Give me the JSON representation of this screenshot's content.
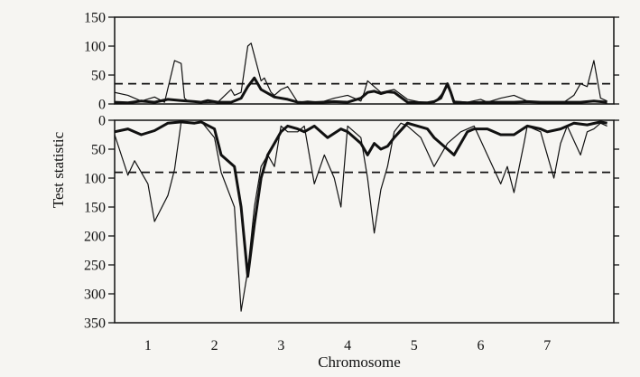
{
  "chart_data": {
    "type": "line",
    "ylabel": "Test statistic",
    "xlabel": "Chromosome",
    "x_tick_labels": [
      "1",
      "2",
      "3",
      "4",
      "5",
      "6",
      "7"
    ],
    "panels": [
      {
        "id": "upper",
        "orientation": "normal",
        "ylim": [
          0,
          150
        ],
        "y_ticks": [
          0,
          50,
          100,
          150
        ],
        "y_tick_labels": [
          "0",
          "50",
          "100",
          "150"
        ],
        "threshold": 35,
        "series": [
          {
            "style": "thick",
            "x": [
              0.0,
              0.2,
              0.4,
              0.6,
              0.8,
              1.0,
              1.2,
              1.3,
              1.4,
              1.55,
              1.75,
              1.9,
              2.0,
              2.1,
              2.2,
              2.4,
              2.6,
              2.75,
              2.9,
              3.1,
              3.3,
              3.5,
              3.7,
              3.75,
              3.8,
              3.9,
              4.0,
              4.1,
              4.2,
              4.4,
              4.7,
              4.8,
              4.9,
              5.0,
              5.05,
              5.1,
              5.3,
              5.6,
              5.8,
              6.0,
              6.2,
              6.4,
              6.6,
              6.8,
              7.0,
              7.2,
              7.4
            ],
            "y": [
              3,
              2,
              5,
              3,
              8,
              6,
              4,
              3,
              6,
              3,
              3,
              10,
              30,
              45,
              25,
              12,
              8,
              3,
              2,
              3,
              4,
              3,
              10,
              15,
              20,
              22,
              18,
              21,
              20,
              3,
              2,
              4,
              10,
              35,
              20,
              3,
              2,
              3,
              3,
              3,
              4,
              3,
              3,
              3,
              3,
              5,
              3
            ]
          },
          {
            "style": "thin",
            "x": [
              0.0,
              0.2,
              0.4,
              0.6,
              0.75,
              0.9,
              1.0,
              1.05,
              1.1,
              1.3,
              1.55,
              1.75,
              1.8,
              1.9,
              2.0,
              2.05,
              2.2,
              2.25,
              2.35,
              2.4,
              2.5,
              2.6,
              2.75,
              2.9,
              3.1,
              3.3,
              3.5,
              3.7,
              3.75,
              3.8,
              3.9,
              4.0,
              4.2,
              4.4,
              4.6,
              4.8,
              4.9,
              5.0,
              5.1,
              5.3,
              5.5,
              5.6,
              5.8,
              6.0,
              6.2,
              6.4,
              6.6,
              6.75,
              6.9,
              7.0,
              7.1,
              7.2,
              7.3,
              7.4
            ],
            "y": [
              20,
              15,
              5,
              12,
              3,
              75,
              70,
              10,
              5,
              2,
              3,
              25,
              15,
              20,
              100,
              105,
              40,
              45,
              20,
              15,
              25,
              30,
              3,
              5,
              3,
              10,
              15,
              5,
              20,
              40,
              30,
              20,
              25,
              8,
              3,
              2,
              15,
              30,
              5,
              3,
              8,
              3,
              10,
              15,
              5,
              3,
              2,
              3,
              15,
              35,
              30,
              75,
              10,
              5
            ]
          }
        ]
      },
      {
        "id": "lower",
        "orientation": "inverted",
        "ylim": [
          0,
          350
        ],
        "y_ticks": [
          0,
          50,
          100,
          150,
          200,
          250,
          300,
          350
        ],
        "y_tick_labels": [
          "0",
          "50",
          "100",
          "150",
          "200",
          "250",
          "300",
          "350"
        ],
        "threshold": 90,
        "series": [
          {
            "style": "thick",
            "x": [
              0.0,
              0.2,
              0.4,
              0.6,
              0.8,
              1.0,
              1.2,
              1.3,
              1.5,
              1.6,
              1.8,
              1.9,
              2.0,
              2.1,
              2.2,
              2.25,
              2.3,
              2.4,
              2.5,
              2.6,
              2.75,
              2.85,
              3.0,
              3.2,
              3.4,
              3.5,
              3.7,
              3.8,
              3.9,
              4.0,
              4.1,
              4.2,
              4.4,
              4.7,
              4.8,
              5.0,
              5.1,
              5.3,
              5.4,
              5.6,
              5.8,
              6.0,
              6.2,
              6.4,
              6.5,
              6.7,
              6.9,
              7.1,
              7.3,
              7.4
            ],
            "y": [
              20,
              15,
              25,
              18,
              5,
              3,
              5,
              3,
              15,
              60,
              80,
              150,
              270,
              180,
              100,
              80,
              60,
              40,
              20,
              10,
              15,
              20,
              10,
              30,
              15,
              20,
              40,
              60,
              40,
              50,
              45,
              30,
              5,
              15,
              30,
              50,
              60,
              20,
              15,
              15,
              25,
              25,
              10,
              15,
              20,
              15,
              5,
              8,
              3,
              5
            ]
          },
          {
            "style": "thin",
            "x": [
              0.0,
              0.2,
              0.3,
              0.5,
              0.6,
              0.8,
              0.9,
              1.0,
              1.2,
              1.3,
              1.5,
              1.6,
              1.8,
              1.9,
              2.0,
              2.1,
              2.2,
              2.3,
              2.4,
              2.5,
              2.6,
              2.75,
              2.85,
              3.0,
              3.15,
              3.3,
              3.4,
              3.5,
              3.7,
              3.8,
              3.9,
              4.0,
              4.1,
              4.2,
              4.3,
              4.4,
              4.6,
              4.8,
              5.0,
              5.2,
              5.4,
              5.6,
              5.8,
              5.9,
              6.0,
              6.15,
              6.2,
              6.4,
              6.5,
              6.6,
              6.7,
              6.8,
              7.0,
              7.1,
              7.2,
              7.3,
              7.4
            ],
            "y": [
              25,
              95,
              70,
              110,
              175,
              130,
              85,
              3,
              5,
              2,
              30,
              90,
              150,
              330,
              260,
              150,
              80,
              60,
              80,
              10,
              20,
              20,
              10,
              110,
              60,
              100,
              150,
              10,
              30,
              100,
              195,
              120,
              80,
              20,
              5,
              10,
              30,
              80,
              40,
              20,
              10,
              60,
              110,
              80,
              125,
              40,
              10,
              20,
              60,
              100,
              40,
              10,
              60,
              20,
              15,
              5,
              10
            ]
          }
        ]
      }
    ]
  }
}
